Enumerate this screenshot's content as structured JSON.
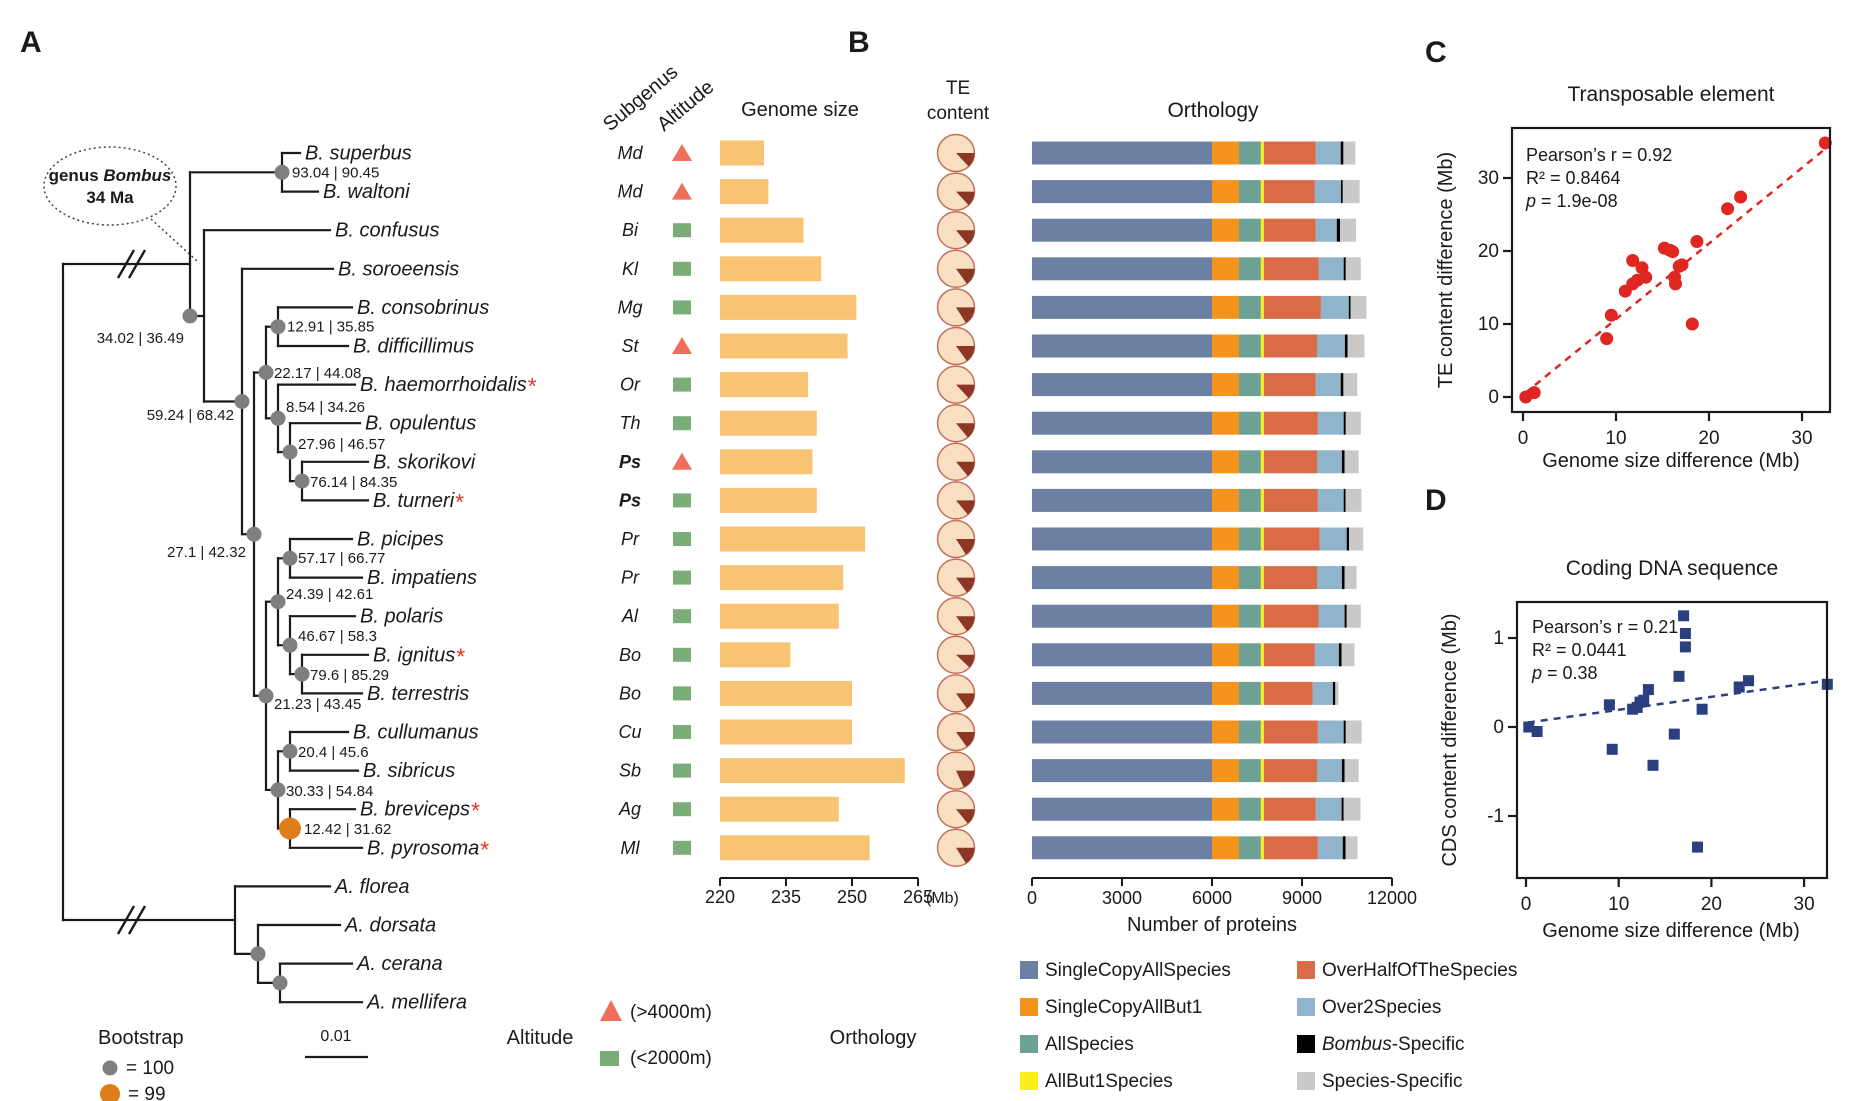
{
  "panels": {
    "a": "A",
    "b": "B",
    "c": "C",
    "d": "D"
  },
  "colors": {
    "genome_bar": "#F8C473",
    "pie_fill": "#F9DFC2",
    "pie_wedge": "#8C3626",
    "pie_stroke": "#C4705A",
    "node_dot": "#7f7f7f",
    "node_dot_99": "#DE7E1A",
    "support_text": "#2A71E2",
    "asterisk": "#E8342A",
    "ps_purple": "#8E2DA8",
    "branch": "#1a1a1a"
  },
  "tree": {
    "callout": {
      "genus_prefix": "genus ",
      "genus_italic": "Bombus",
      "line2": "34 Ma"
    },
    "species": [
      {
        "name": "B. super",
        "name_full": "B. superbus",
        "asterisk": false,
        "subgenus": "Md",
        "subgenus_special": false,
        "altitude": "high"
      },
      {
        "name_full": "B. waltoni",
        "asterisk": false,
        "subgenus": "Md",
        "subgenus_special": false,
        "altitude": "high"
      },
      {
        "name_full": "B. confusus",
        "asterisk": false,
        "subgenus": "Bi",
        "subgenus_special": false,
        "altitude": "low"
      },
      {
        "name_full": "B. soroeensis",
        "asterisk": false,
        "subgenus": "Kl",
        "subgenus_special": false,
        "altitude": "low"
      },
      {
        "name_full": "B. consobrinus",
        "asterisk": false,
        "subgenus": "Mg",
        "subgenus_special": false,
        "altitude": "low"
      },
      {
        "name_full": "B. difficillimus",
        "asterisk": false,
        "subgenus": "St",
        "subgenus_special": false,
        "altitude": "high"
      },
      {
        "name_full": "B. haemorrhoidalis",
        "asterisk": true,
        "subgenus": "Or",
        "subgenus_special": false,
        "altitude": "low"
      },
      {
        "name_full": "B. opulentus",
        "asterisk": false,
        "subgenus": "Th",
        "subgenus_special": false,
        "altitude": "low"
      },
      {
        "name_full": "B. skorikovi",
        "asterisk": false,
        "subgenus": "Ps",
        "subgenus_special": true,
        "altitude": "high"
      },
      {
        "name_full": "B. turneri",
        "asterisk": true,
        "subgenus": "Ps",
        "subgenus_special": true,
        "altitude": "low"
      },
      {
        "name_full": "B. picipes",
        "asterisk": false,
        "subgenus": "Pr",
        "subgenus_special": false,
        "altitude": "low"
      },
      {
        "name_full": "B. impatiens",
        "asterisk": false,
        "subgenus": "Pr",
        "subgenus_special": false,
        "altitude": "low"
      },
      {
        "name_full": "B. polaris",
        "asterisk": false,
        "subgenus": "Al",
        "subgenus_special": false,
        "altitude": "low"
      },
      {
        "name_full": "B. ignitus",
        "asterisk": true,
        "subgenus": "Bo",
        "subgenus_special": false,
        "altitude": "low"
      },
      {
        "name_full": "B. terrestris",
        "asterisk": false,
        "subgenus": "Bo",
        "subgenus_special": false,
        "altitude": "low"
      },
      {
        "name_full": "B. cullumanus",
        "asterisk": false,
        "subgenus": "Cu",
        "subgenus_special": false,
        "altitude": "low"
      },
      {
        "name_full": "B. sibricus",
        "asterisk": false,
        "subgenus": "Sb",
        "subgenus_special": false,
        "altitude": "low"
      },
      {
        "name_full": "B. breviceps",
        "asterisk": true,
        "subgenus": "Ag",
        "subgenus_special": false,
        "altitude": "low"
      },
      {
        "name_full": "B. pyrosoma",
        "asterisk": true,
        "subgenus": "Ml",
        "subgenus_special": false,
        "altitude": "low"
      }
    ],
    "outgroup": [
      "A. florea",
      "A. dorsata",
      "A. cerana",
      "A. mellifera"
    ],
    "node_supports": [
      "93.04 | 90.45",
      "34.02 | 36.49",
      "59.24 | 68.42",
      "27.1 | 42.32",
      "12.91 | 35.85",
      "22.17 | 44.08",
      "8.54 | 34.26",
      "27.96 | 46.57",
      "76.14 | 84.35",
      "57.17 | 66.77",
      "24.39 | 42.61",
      "46.67 | 58.3",
      "79.6 | 85.29",
      "21.23 | 43.45",
      "20.4 | 45.6",
      "30.33 | 54.84",
      "12.42 | 31.62"
    ]
  },
  "columns": {
    "subgenus": "Subgenus",
    "altitude": "Altitude",
    "genome": "Genome size",
    "te1": "TE",
    "te2": "content",
    "genome_unit": "(Mb)"
  },
  "bootstrap": {
    "title": "Bootstrap",
    "items": [
      {
        "label": "= 100",
        "color": "#7f7f7f"
      },
      {
        "label": "= 99",
        "color": "#DE7E1A"
      }
    ]
  },
  "scalebar": {
    "label": "0.01"
  },
  "alt_legend": {
    "title": "Altitude",
    "high_label": "(>4000m)",
    "low_label": "(<2000m)",
    "high_color": "#EE6F5C",
    "low_color": "#7BAD79"
  },
  "orthology": {
    "title": "Orthology",
    "xlabel": "Number of proteins",
    "legend_title": "Orthology",
    "categories": [
      {
        "label": "SingleCopyAllSpecies",
        "color": "#6C80A4"
      },
      {
        "label": "SingleCopyAllBut1",
        "color": "#F5941D"
      },
      {
        "label": "AllSpecies",
        "color": "#6EA195"
      },
      {
        "label": "AllBut1Species",
        "color": "#FAEE1C"
      },
      {
        "label": "OverHalfOfTheSpecies",
        "color": "#D96C47"
      },
      {
        "label": "Over2Species",
        "color": "#90B4CB"
      },
      {
        "label_italic": "Bombus",
        "label": "-Specific",
        "color": "#000000"
      },
      {
        "label": "Species-Specific",
        "color": "#C9C9C9"
      }
    ]
  },
  "chart_data": [
    {
      "id": "genome_size",
      "type": "bar",
      "title": "Genome size",
      "unit": "Mb",
      "xlim": [
        220,
        265
      ],
      "xticks": [
        220,
        235,
        250,
        265
      ],
      "categories": [
        "B. superbus",
        "B. waltoni",
        "B. confusus",
        "B. soroeensis",
        "B. consobrinus",
        "B. difficillimus",
        "B. haemorrhoidalis",
        "B. opulentus",
        "B. skorikovi",
        "B. turneri",
        "B. picipes",
        "B. impatiens",
        "B. polaris",
        "B. ignitus",
        "B. terrestris",
        "B. cullumanus",
        "B. sibricus",
        "B. breviceps",
        "B. pyrosoma"
      ],
      "values": [
        230,
        231,
        239,
        243,
        251,
        249,
        240,
        242,
        241,
        242,
        253,
        248,
        247,
        236,
        250,
        250,
        262,
        247,
        254
      ]
    },
    {
      "id": "te_content",
      "type": "pie",
      "title": "TE content",
      "values": [
        0.13,
        0.13,
        0.14,
        0.15,
        0.16,
        0.15,
        0.13,
        0.14,
        0.14,
        0.14,
        0.16,
        0.15,
        0.15,
        0.12,
        0.15,
        0.15,
        0.18,
        0.14,
        0.16
      ]
    },
    {
      "id": "orthology",
      "type": "stacked-bar",
      "xlabel": "Number of proteins",
      "xlim": [
        0,
        12000
      ],
      "xticks": [
        0,
        3000,
        6000,
        9000,
        12000
      ],
      "categories": [
        "B. superbus",
        "B. waltoni",
        "B. confusus",
        "B. soroeensis",
        "B. consobrinus",
        "B. difficillimus",
        "B. haemorrhoidalis",
        "B. opulentus",
        "B. skorikovi",
        "B. turneri",
        "B. picipes",
        "B. impatiens",
        "B. polaris",
        "B. ignitus",
        "B. terrestris",
        "B. cullumanus",
        "B. sibricus",
        "B. breviceps",
        "B. pyrosoma"
      ],
      "series": [
        {
          "name": "SingleCopyAllSpecies",
          "values": [
            6000,
            6000,
            6000,
            6000,
            6000,
            6000,
            6000,
            6000,
            6000,
            6000,
            6000,
            6000,
            6000,
            6000,
            6000,
            6000,
            6000,
            6000,
            6000
          ]
        },
        {
          "name": "SingleCopyAllBut1",
          "values": [
            900,
            900,
            900,
            900,
            900,
            900,
            900,
            900,
            900,
            900,
            900,
            900,
            900,
            900,
            900,
            900,
            900,
            900,
            900
          ]
        },
        {
          "name": "AllSpecies",
          "values": [
            730,
            730,
            730,
            730,
            730,
            730,
            730,
            730,
            730,
            730,
            730,
            730,
            730,
            730,
            730,
            730,
            730,
            730,
            730
          ]
        },
        {
          "name": "AllBut1Species",
          "values": [
            100,
            100,
            100,
            100,
            100,
            100,
            100,
            100,
            100,
            100,
            100,
            100,
            100,
            100,
            100,
            100,
            100,
            100,
            100
          ]
        },
        {
          "name": "OverHalfOfTheSpecies",
          "values": [
            1730,
            1700,
            1730,
            1830,
            1900,
            1770,
            1730,
            1800,
            1770,
            1800,
            1860,
            1770,
            1830,
            1700,
            1630,
            1800,
            1770,
            1730,
            1800
          ]
        },
        {
          "name": "Over2Species",
          "values": [
            830,
            870,
            700,
            830,
            930,
            930,
            830,
            860,
            830,
            860,
            900,
            830,
            860,
            800,
            670,
            860,
            830,
            860,
            830
          ]
        },
        {
          "name": "Bombus-Specific",
          "values": [
            90,
            60,
            110,
            70,
            60,
            90,
            90,
            70,
            90,
            60,
            80,
            90,
            70,
            90,
            80,
            70,
            90,
            70,
            90
          ]
        },
        {
          "name": "Species-Specific",
          "values": [
            400,
            560,
            530,
            500,
            530,
            560,
            460,
            500,
            470,
            530,
            470,
            400,
            470,
            430,
            100,
            530,
            470,
            560,
            400
          ]
        }
      ]
    },
    {
      "id": "te_scatter",
      "type": "scatter",
      "title": "Transposable element",
      "xlabel": "Genome size difference (Mb)",
      "ylabel": "TE content difference (Mb)",
      "stats": {
        "r": "Pearson’s r = 0.92",
        "r2": "R² = 0.8464",
        "p_italic": "p",
        "p_rest": " = 1.9e-08"
      },
      "xticks": [
        0,
        10,
        20,
        30
      ],
      "yticks": [
        0,
        10,
        20,
        30
      ],
      "point_color": "#E02620",
      "points": [
        [
          0.3,
          0
        ],
        [
          1.2,
          0.6
        ],
        [
          9,
          8
        ],
        [
          9.5,
          11.2
        ],
        [
          11,
          14.5
        ],
        [
          11.8,
          15.5
        ],
        [
          12.3,
          16
        ],
        [
          11.8,
          18.7
        ],
        [
          12.8,
          17.7
        ],
        [
          13.2,
          16.4
        ],
        [
          15.2,
          20.4
        ],
        [
          15.8,
          20.1
        ],
        [
          16.1,
          19.9
        ],
        [
          16.3,
          16.4
        ],
        [
          16.4,
          15.5
        ],
        [
          16.8,
          17.9
        ],
        [
          17.1,
          18.1
        ],
        [
          18.2,
          10
        ],
        [
          18.7,
          21.3
        ],
        [
          22,
          25.8
        ],
        [
          23.4,
          27.4
        ],
        [
          32.5,
          34.8
        ]
      ],
      "trend": [
        [
          0.2,
          0.5
        ],
        [
          32.8,
          34.3
        ]
      ]
    },
    {
      "id": "cds_scatter",
      "type": "scatter",
      "title": "Coding DNA sequence",
      "xlabel": "Genome size difference (Mb)",
      "ylabel": "CDS content difference (Mb)",
      "stats": {
        "r": "Pearson’s r = 0.21",
        "r2": "R² = 0.0441",
        "p_italic": "p",
        "p_rest": " = 0.38"
      },
      "xticks": [
        0,
        10,
        20,
        30
      ],
      "yticks": [
        -1,
        0,
        1
      ],
      "point_color": "#2B3F7E",
      "points": [
        [
          0.3,
          0
        ],
        [
          1.2,
          -0.05
        ],
        [
          9,
          0.25
        ],
        [
          9.3,
          -0.25
        ],
        [
          11.5,
          0.2
        ],
        [
          12,
          0.22
        ],
        [
          12.3,
          0.28
        ],
        [
          12.7,
          0.3
        ],
        [
          13.2,
          0.42
        ],
        [
          13.7,
          -0.43
        ],
        [
          16,
          -0.08
        ],
        [
          16.5,
          0.57
        ],
        [
          17,
          1.25
        ],
        [
          17.2,
          1.05
        ],
        [
          17.2,
          0.9
        ],
        [
          18.5,
          -1.35
        ],
        [
          19,
          0.2
        ],
        [
          23,
          0.45
        ],
        [
          24,
          0.52
        ],
        [
          32.5,
          0.48
        ]
      ],
      "trend": [
        [
          0.2,
          0.05
        ],
        [
          32.4,
          0.52
        ]
      ]
    }
  ]
}
